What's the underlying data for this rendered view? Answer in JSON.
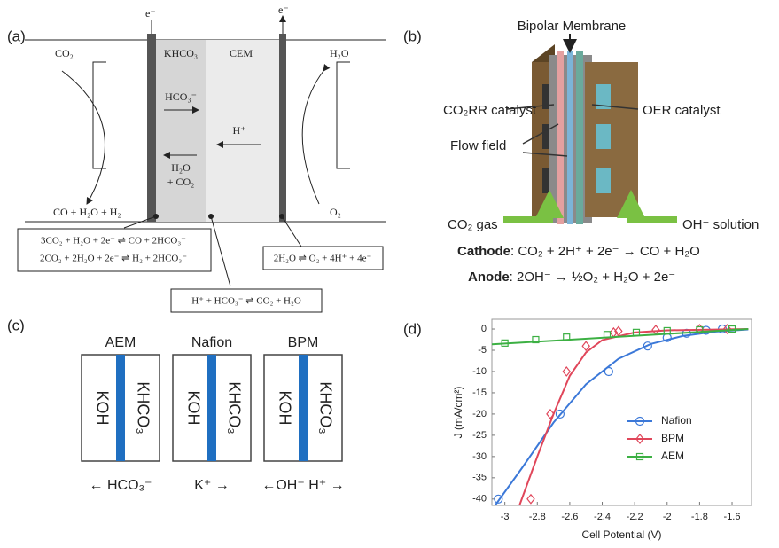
{
  "panels": {
    "a": "(a)",
    "b": "(b)",
    "c": "(c)",
    "d": "(d)"
  },
  "a": {
    "electron_left": "e⁻",
    "electron_right": "e⁻",
    "co2": "CO₂",
    "h2o": "H₂O",
    "khco3": "KHCO₃",
    "cem": "CEM",
    "hco3": "HCO₃⁻",
    "h_plus": "H⁺",
    "h2o_co2": [
      "H₂O",
      "+ CO₂"
    ],
    "cathode_products": "CO + H₂O + H₂",
    "o2": "O₂",
    "cathode_reactions": [
      "3CO₂ + H₂O + 2e⁻ ⇌ CO + 2HCO₃⁻",
      "2CO₂ + 2H₂O + 2e⁻ ⇌ H₂ + 2HCO₃⁻"
    ],
    "anode_reaction": "2H₂O ⇌ O₂ + 4H⁺ + 4e⁻",
    "membrane_reaction": "H⁺ + HCO₃⁻ ⇌ CO₂ + H₂O"
  },
  "b": {
    "membrane": "Bipolar Membrane",
    "co2rr": "CO₂RR catalyst",
    "oer": "OER catalyst",
    "flow": "Flow field",
    "co2_gas": "CO₂ gas",
    "oh_solution": "OH⁻ solution",
    "cathode_label": "Cathode",
    "cathode_eq": ": CO₂ + 2H⁺ + 2e⁻ → CO + H₂O",
    "anode_label": "Anode",
    "anode_eq": ": 2OH⁻ → ½O₂ + H₂O + 2e⁻"
  },
  "c": {
    "cells": [
      {
        "name": "AEM",
        "left": "KOH",
        "right": "KHCO₃",
        "transport": "← HCO₃⁻"
      },
      {
        "name": "Nafion",
        "left": "KOH",
        "right": "KHCO₃",
        "transport": "K⁺ →"
      },
      {
        "name": "BPM",
        "left": "KOH",
        "right": "KHCO₃",
        "transport": "←OH⁻  H⁺ →"
      }
    ]
  },
  "chart_data": {
    "type": "scatter",
    "x_label": "Cell Potential (V)",
    "y_label": "J (mA/cm²)",
    "xlim": [
      -3.08,
      -1.48
    ],
    "ylim": [
      -41.5,
      2.3
    ],
    "xticks": [
      -3,
      -2.8,
      -2.6,
      -2.4,
      -2.2,
      -2,
      -1.8,
      -1.6
    ],
    "yticks": [
      0,
      -5,
      -10,
      -15,
      -20,
      -25,
      -30,
      -35,
      -40
    ],
    "legend": "lower right",
    "series": [
      {
        "name": "Nafion",
        "color": "#3b78d8",
        "marker": "circle",
        "x": [
          -3.04,
          -2.66,
          -2.36,
          -2.12,
          -2.0,
          -1.88,
          -1.76,
          -1.66
        ],
        "values": [
          -40,
          -20,
          -10,
          -4,
          -2,
          -1,
          -0.3,
          0
        ],
        "curve": {
          "x": [
            -3.06,
            -2.9,
            -2.7,
            -2.5,
            -2.3,
            -2.1,
            -1.9,
            -1.7,
            -1.5
          ],
          "values": [
            -41.5,
            -33,
            -22,
            -13,
            -7,
            -3.5,
            -1.6,
            -0.6,
            -0.1
          ]
        }
      },
      {
        "name": "BPM",
        "color": "#e0465a",
        "marker": "diamond",
        "x": [
          -2.84,
          -2.72,
          -2.62,
          -2.5,
          -2.33,
          -2.3,
          -2.07,
          -1.8,
          -1.63
        ],
        "values": [
          -40,
          -20,
          -10,
          -4,
          -0.8,
          -0.5,
          -0.2,
          0,
          0
        ],
        "curve": {
          "x": [
            -2.91,
            -2.8,
            -2.7,
            -2.6,
            -2.5,
            -2.4,
            -2.2,
            -2.0,
            -1.5
          ],
          "values": [
            -41.5,
            -30,
            -20,
            -11,
            -5.5,
            -2.6,
            -0.8,
            -0.3,
            0
          ]
        }
      },
      {
        "name": "AEM",
        "color": "#3cb043",
        "marker": "square",
        "x": [
          -3.0,
          -2.81,
          -2.62,
          -2.37,
          -2.19,
          -2.0,
          -1.8,
          -1.6
        ],
        "values": [
          -3.3,
          -2.5,
          -1.9,
          -1.3,
          -0.8,
          -0.4,
          -0.2,
          0
        ],
        "curve": {
          "x": [
            -3.08,
            -1.5
          ],
          "values": [
            -3.6,
            0
          ]
        }
      }
    ]
  }
}
